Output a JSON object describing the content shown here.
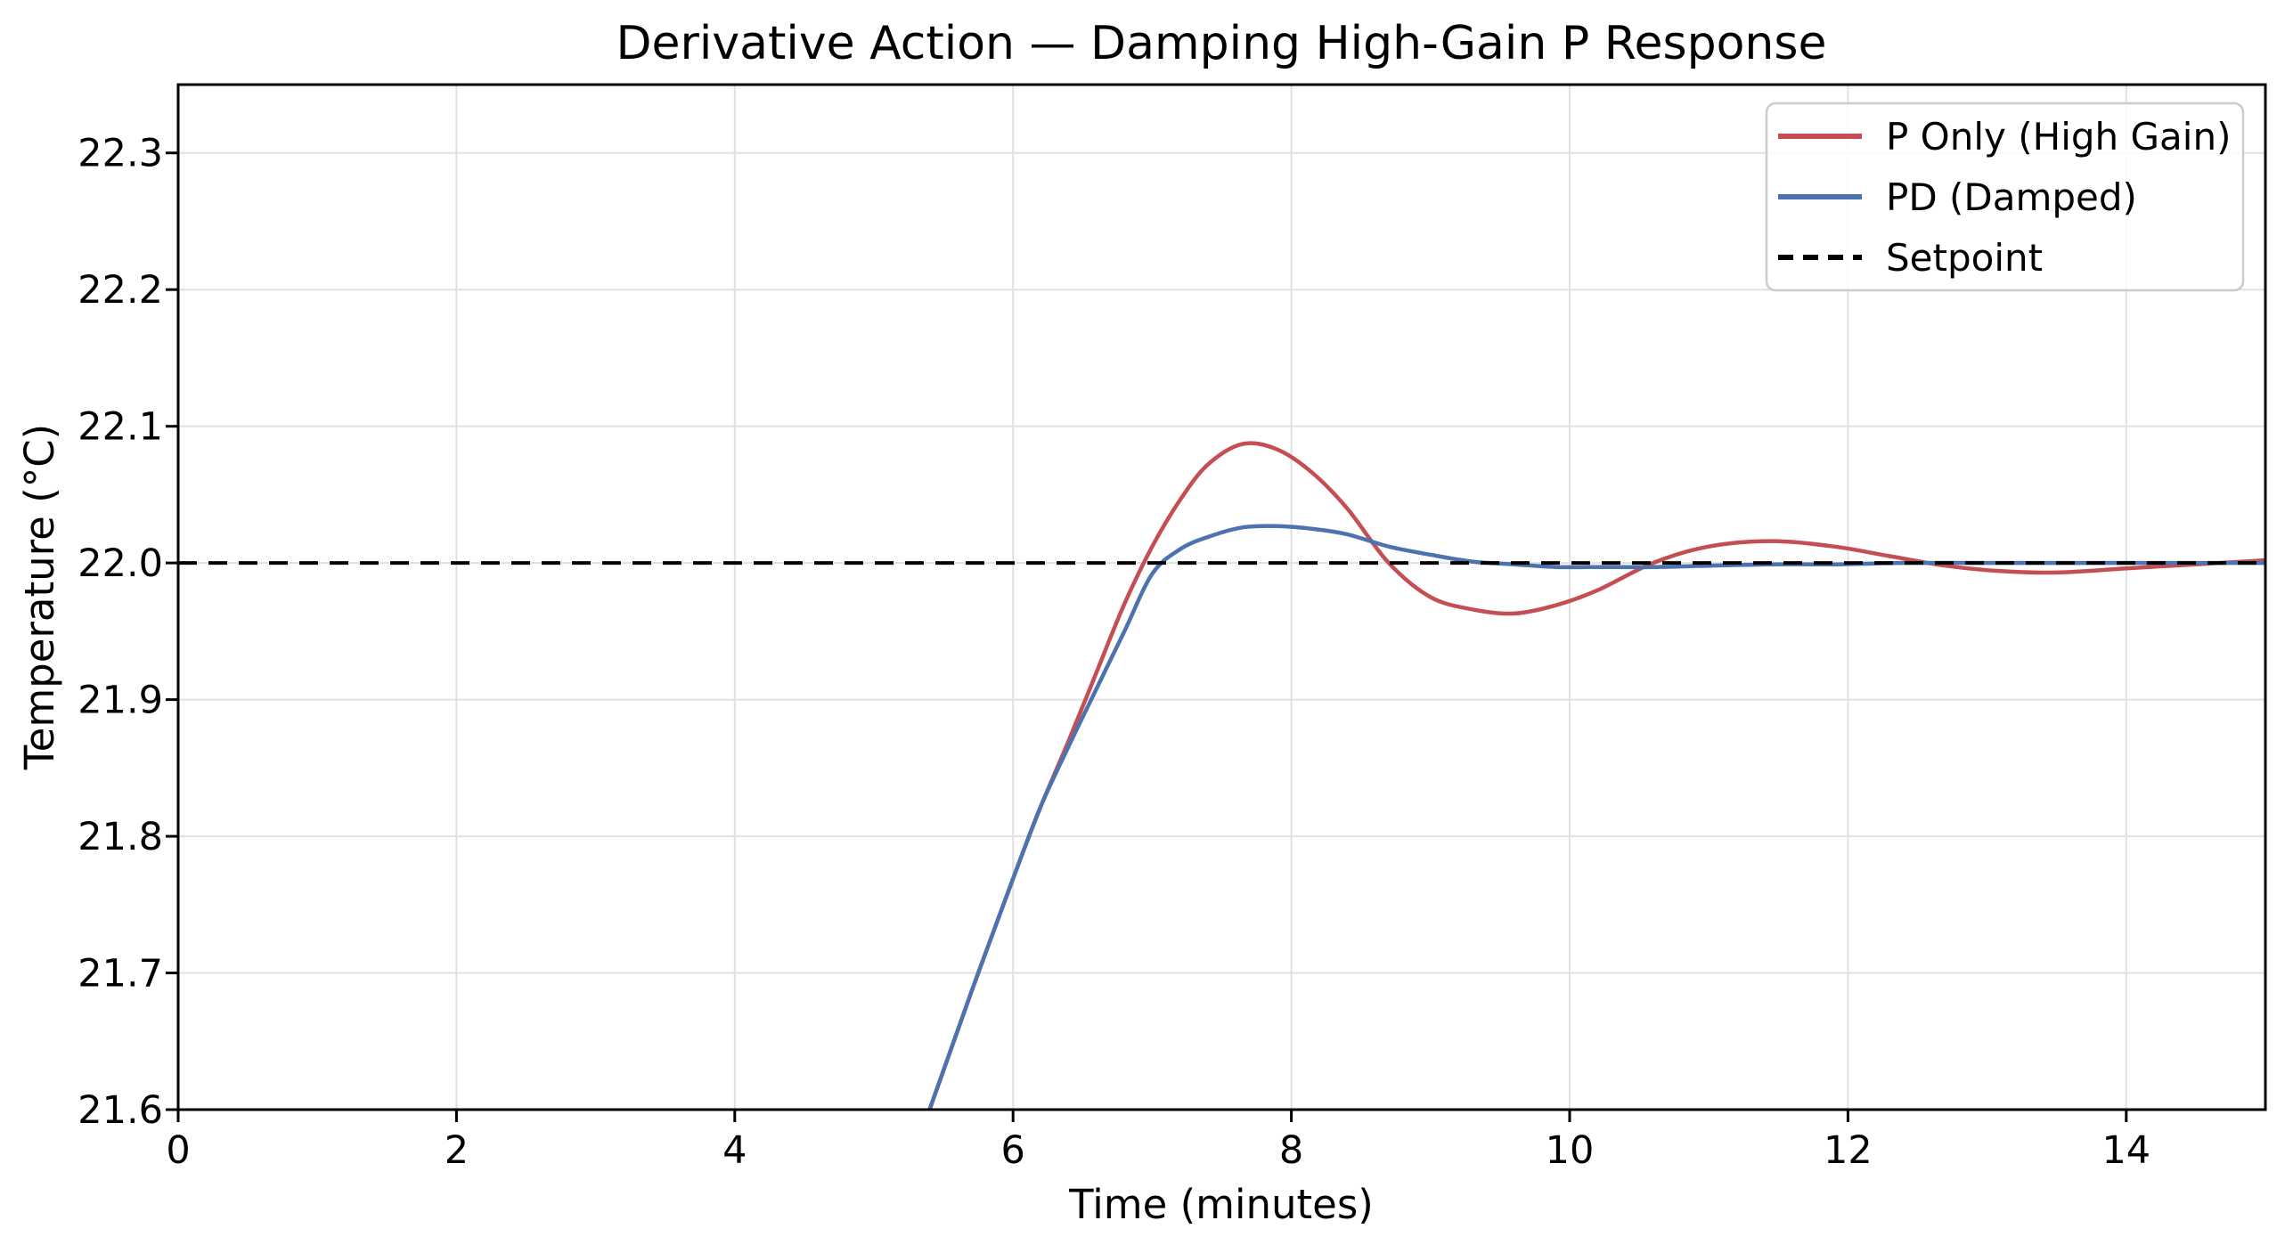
{
  "figure": {
    "background": "#ffffff"
  },
  "colors": {
    "grid": "#e0e0e0",
    "spine": "#000000",
    "text": "#000000",
    "legend_border": "#cccccc",
    "legend_background": "#ffffff",
    "series_red": "#c44e52",
    "series_blue": "#4c72b0",
    "setpoint_black": "#000000"
  },
  "chart_data": {
    "type": "line",
    "title": "Derivative Action — Damping High-Gain P Response",
    "xlabel": "Time (minutes)",
    "ylabel": "Temperature (°C)",
    "xlim": [
      0,
      15
    ],
    "ylim": [
      21.6,
      22.35
    ],
    "xticks": [
      0,
      2,
      4,
      6,
      8,
      10,
      12,
      14
    ],
    "yticks": [
      21.6,
      21.7,
      21.8,
      21.9,
      22.0,
      22.1,
      22.2,
      22.3
    ],
    "grid": true,
    "legend_position": "upper right",
    "setpoint_value": 22.0,
    "series": [
      {
        "name": "P Only (High Gain)",
        "color": "#c44e52",
        "style": "solid",
        "linewidth": 4.5,
        "points": [
          [
            5.1,
            21.51
          ],
          [
            5.4,
            21.6
          ],
          [
            5.7,
            21.686
          ],
          [
            6.0,
            21.769
          ],
          [
            6.2,
            21.822
          ],
          [
            6.4,
            21.87
          ],
          [
            6.6,
            21.92
          ],
          [
            6.8,
            21.97
          ],
          [
            7.0,
            22.012
          ],
          [
            7.2,
            22.046
          ],
          [
            7.4,
            22.072
          ],
          [
            7.65,
            22.087
          ],
          [
            7.9,
            22.083
          ],
          [
            8.15,
            22.066
          ],
          [
            8.4,
            22.04
          ],
          [
            8.7,
            22.0
          ],
          [
            9.0,
            21.975
          ],
          [
            9.3,
            21.966
          ],
          [
            9.6,
            21.963
          ],
          [
            9.9,
            21.969
          ],
          [
            10.2,
            21.98
          ],
          [
            10.6,
            22.0
          ],
          [
            11.0,
            22.012
          ],
          [
            11.45,
            22.016
          ],
          [
            11.9,
            22.012
          ],
          [
            12.3,
            22.005
          ],
          [
            12.7,
            21.998
          ],
          [
            13.1,
            21.994
          ],
          [
            13.5,
            21.993
          ],
          [
            14.0,
            21.996
          ],
          [
            14.5,
            21.999
          ],
          [
            15.0,
            22.002
          ]
        ]
      },
      {
        "name": "PD (Damped)",
        "color": "#4c72b0",
        "style": "solid",
        "linewidth": 4.5,
        "points": [
          [
            5.1,
            21.51
          ],
          [
            5.4,
            21.6
          ],
          [
            5.7,
            21.686
          ],
          [
            6.0,
            21.769
          ],
          [
            6.2,
            21.822
          ],
          [
            6.4,
            21.866
          ],
          [
            6.6,
            21.908
          ],
          [
            6.8,
            21.95
          ],
          [
            7.0,
            21.992
          ],
          [
            7.2,
            22.01
          ],
          [
            7.4,
            22.019
          ],
          [
            7.65,
            22.026
          ],
          [
            7.9,
            22.027
          ],
          [
            8.15,
            22.025
          ],
          [
            8.4,
            22.021
          ],
          [
            8.7,
            22.012
          ],
          [
            9.0,
            22.006
          ],
          [
            9.3,
            22.001
          ],
          [
            9.6,
            21.999
          ],
          [
            9.9,
            21.997
          ],
          [
            10.2,
            21.997
          ],
          [
            10.6,
            21.997
          ],
          [
            11.0,
            21.998
          ],
          [
            11.45,
            21.999
          ],
          [
            11.9,
            21.999
          ],
          [
            12.4,
            22.0
          ],
          [
            13.0,
            22.0
          ],
          [
            13.5,
            22.0
          ],
          [
            14.0,
            22.0
          ],
          [
            14.5,
            22.0
          ],
          [
            15.0,
            22.0
          ]
        ]
      },
      {
        "name": "Setpoint",
        "color": "#000000",
        "style": "dashed",
        "linewidth": 4,
        "points": [
          [
            0.0,
            22.0
          ],
          [
            15.0,
            22.0
          ]
        ]
      }
    ]
  }
}
